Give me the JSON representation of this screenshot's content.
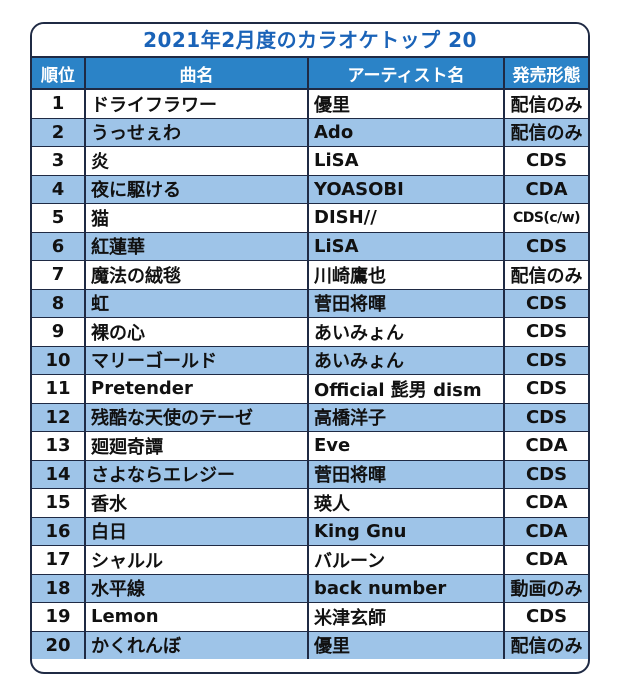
{
  "title": "2021年2月度のカラオケトップ 20",
  "headers": {
    "rank": "順位",
    "song": "曲名",
    "artist": "アーティスト名",
    "format": "発売形態"
  },
  "colors": {
    "title_text": "#1a63b8",
    "header_bg": "#2b83c7",
    "alt_row_bg": "#9ec4e8",
    "border": "#1f2a44"
  },
  "rows": [
    {
      "rank": "1",
      "song": "ドライフラワー",
      "artist": "優里",
      "format": "配信のみ"
    },
    {
      "rank": "2",
      "song": "うっせぇわ",
      "artist": "Ado",
      "format": "配信のみ"
    },
    {
      "rank": "3",
      "song": "炎",
      "artist": "LiSA",
      "format": "CDS"
    },
    {
      "rank": "4",
      "song": "夜に駆ける",
      "artist": "YOASOBI",
      "format": "CDA"
    },
    {
      "rank": "5",
      "song": "猫",
      "artist": "DISH//",
      "format": "CDS(c/w)"
    },
    {
      "rank": "6",
      "song": "紅蓮華",
      "artist": "LiSA",
      "format": "CDS"
    },
    {
      "rank": "7",
      "song": "魔法の絨毯",
      "artist": "川崎鷹也",
      "format": "配信のみ"
    },
    {
      "rank": "8",
      "song": "虹",
      "artist": "菅田将暉",
      "format": "CDS"
    },
    {
      "rank": "9",
      "song": "裸の心",
      "artist": "あいみょん",
      "format": "CDS"
    },
    {
      "rank": "10",
      "song": "マリーゴールド",
      "artist": "あいみょん",
      "format": "CDS"
    },
    {
      "rank": "11",
      "song": "Pretender",
      "artist": "Official 髭男 dism",
      "format": "CDS"
    },
    {
      "rank": "12",
      "song": "残酷な天使のテーゼ",
      "artist": "高橋洋子",
      "format": "CDS"
    },
    {
      "rank": "13",
      "song": "廻廻奇譚",
      "artist": "Eve",
      "format": "CDA"
    },
    {
      "rank": "14",
      "song": "さよならエレジー",
      "artist": "菅田将暉",
      "format": "CDS"
    },
    {
      "rank": "15",
      "song": "香水",
      "artist": "瑛人",
      "format": "CDA"
    },
    {
      "rank": "16",
      "song": "白日",
      "artist": "King Gnu",
      "format": "CDA"
    },
    {
      "rank": "17",
      "song": "シャルル",
      "artist": "バルーン",
      "format": "CDA"
    },
    {
      "rank": "18",
      "song": "水平線",
      "artist": "back number",
      "format": "動画のみ"
    },
    {
      "rank": "19",
      "song": "Lemon",
      "artist": "米津玄師",
      "format": "CDS"
    },
    {
      "rank": "20",
      "song": "かくれんぼ",
      "artist": "優里",
      "format": "配信のみ"
    }
  ]
}
